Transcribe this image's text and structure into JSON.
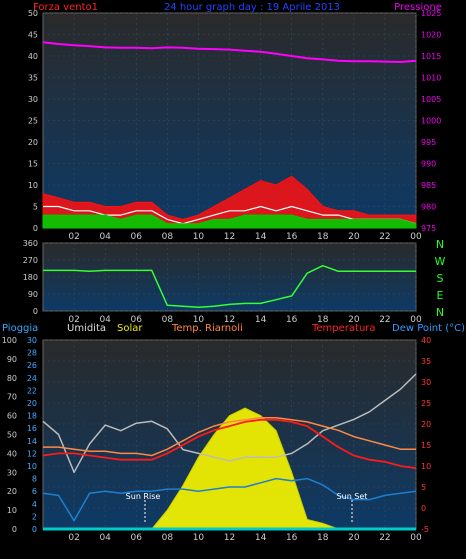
{
  "colors": {
    "background": "#000000",
    "plot_bg_top": "#2a2a2a",
    "plot_bg_bottom": "#0d3a66",
    "grid": "#3a4a5a",
    "wind_avg": "#00cc00",
    "wind_gust": "#ff1010",
    "wind_white": "#ffffff",
    "pressure": "#ff00ff",
    "direction": "#33ff33",
    "humidity": "#bbbbbb",
    "solar_fill": "#eeee00",
    "app_temp": "#ff8844",
    "temperature": "#ff1a1a",
    "dew_point": "#1e7fd0",
    "rain": "#00cccc",
    "left_axis_text": "#cccccc",
    "pressure_axis_text": "#ee00ee",
    "rain_axis_text": "#44aaff",
    "temp_axis_text": "#ff3333"
  },
  "header": {
    "left_label": "Forza vento1",
    "title": "24 hour graph day : 19 Aprile 2013",
    "right_label": "Pressione"
  },
  "direction": {
    "compass": [
      "N",
      "W",
      "S",
      "E",
      "N"
    ]
  },
  "bottom_header": {
    "rain": "Pioggia",
    "humidity": "Umidita",
    "solar": "Solar",
    "app_temp": "Temp. Riarnoli",
    "temperature": "Temperatura",
    "dew_point": "Dew Point (°C)"
  },
  "annotations": {
    "sunrise": "Sun Rise",
    "sunset": "Sun Set"
  },
  "chart_data": [
    {
      "type": "line",
      "x_ticks": [
        "02",
        "04",
        "06",
        "08",
        "10",
        "12",
        "14",
        "16",
        "18",
        "20",
        "22",
        "00"
      ],
      "left_axis": {
        "ylim": [
          0,
          50
        ],
        "ticks": [
          0,
          5,
          10,
          15,
          20,
          25,
          30,
          35,
          40,
          45,
          50
        ]
      },
      "right_axis": {
        "ylim": [
          975,
          1025
        ],
        "ticks": [
          975,
          980,
          985,
          990,
          995,
          1000,
          1005,
          1010,
          1015,
          1020,
          1025
        ]
      },
      "hours": [
        0,
        1,
        2,
        3,
        4,
        5,
        6,
        7,
        8,
        9,
        10,
        11,
        12,
        13,
        14,
        15,
        16,
        17,
        18,
        19,
        20,
        21,
        22,
        23,
        24
      ],
      "series": [
        {
          "key": "pressure",
          "axis": "right",
          "values": [
            1018.2,
            1017.8,
            1017.5,
            1017.3,
            1017.0,
            1016.9,
            1016.9,
            1016.8,
            1017.0,
            1016.9,
            1016.7,
            1016.6,
            1016.5,
            1016.2,
            1016.0,
            1015.5,
            1015.0,
            1014.5,
            1014.2,
            1013.9,
            1013.8,
            1013.8,
            1013.7,
            1013.6,
            1013.9
          ]
        },
        {
          "key": "wind_gust",
          "axis": "left",
          "values": [
            8,
            7,
            6,
            6,
            5,
            5,
            6,
            6,
            3,
            2,
            3,
            5,
            7,
            9,
            11,
            10,
            12,
            9,
            5,
            4,
            4,
            3,
            3,
            3,
            3
          ]
        },
        {
          "key": "wind_white",
          "axis": "left",
          "values": [
            5,
            5,
            4,
            4,
            3,
            3,
            4,
            4,
            2,
            1,
            2,
            3,
            4,
            4,
            5,
            4,
            5,
            4,
            3,
            3,
            2,
            2,
            2,
            2,
            1
          ]
        },
        {
          "key": "wind_avg",
          "axis": "left",
          "values": [
            3,
            3,
            3,
            3,
            3,
            2,
            3,
            3,
            1,
            1,
            1,
            2,
            2,
            3,
            3,
            3,
            3,
            2,
            2,
            2,
            2,
            2,
            2,
            2,
            1
          ]
        }
      ]
    },
    {
      "type": "line",
      "x_ticks": [
        "02",
        "04",
        "06",
        "08",
        "10",
        "12",
        "14",
        "16",
        "18",
        "20",
        "22",
        "00"
      ],
      "ylim": [
        0,
        360
      ],
      "ticks": [
        0,
        90,
        180,
        270,
        360
      ],
      "hours": [
        0,
        1,
        2,
        3,
        4,
        5,
        6,
        7,
        8,
        9,
        10,
        11,
        12,
        13,
        14,
        15,
        16,
        17,
        18,
        19,
        20,
        21,
        22,
        23,
        24
      ],
      "series": [
        {
          "key": "direction",
          "values": [
            215,
            215,
            215,
            210,
            215,
            215,
            215,
            215,
            30,
            25,
            20,
            25,
            35,
            40,
            40,
            60,
            80,
            200,
            240,
            210,
            210,
            210,
            210,
            210,
            210
          ]
        }
      ]
    },
    {
      "type": "line",
      "x_ticks": [
        "02",
        "04",
        "06",
        "08",
        "10",
        "12",
        "14",
        "16",
        "18",
        "20",
        "22",
        "00"
      ],
      "rain_axis": {
        "ylim": [
          0,
          100
        ],
        "ticks": [
          0,
          10,
          20,
          30,
          40,
          50,
          60,
          70,
          80,
          90,
          100
        ]
      },
      "secondary_axis": {
        "ylim": [
          0,
          30
        ],
        "ticks": [
          0,
          2,
          4,
          6,
          8,
          10,
          12,
          14,
          16,
          18,
          20,
          22,
          24,
          26,
          28,
          30
        ]
      },
      "temp_axis": {
        "ylim": [
          -5,
          40
        ],
        "ticks": [
          -5,
          0,
          5,
          10,
          15,
          20,
          25,
          30,
          35,
          40
        ]
      },
      "hours": [
        0,
        1,
        2,
        3,
        4,
        5,
        6,
        7,
        8,
        9,
        10,
        11,
        12,
        13,
        14,
        15,
        16,
        17,
        18,
        19,
        20,
        21,
        22,
        23,
        24
      ],
      "series": [
        {
          "key": "humidity",
          "axis": "rain",
          "values": [
            57,
            50,
            30,
            45,
            55,
            52,
            56,
            57,
            53,
            42,
            40,
            38,
            36,
            38,
            38,
            38,
            40,
            45,
            52,
            55,
            58,
            62,
            68,
            74,
            82
          ]
        },
        {
          "key": "solar",
          "axis": "rain",
          "values": [
            0,
            0,
            0,
            0,
            0,
            0,
            0,
            0,
            10,
            23,
            38,
            50,
            60,
            64,
            60,
            52,
            30,
            5,
            3,
            0,
            0,
            0,
            0,
            0,
            0
          ]
        },
        {
          "key": "app_temp",
          "axis": "temp",
          "values": [
            14.5,
            14.5,
            14.0,
            13.5,
            13.5,
            13.0,
            13.0,
            12.5,
            14.0,
            16.0,
            18.0,
            19.5,
            20.5,
            21.0,
            21.5,
            21.5,
            21.0,
            20.5,
            19.5,
            18.5,
            17.0,
            16.0,
            15.0,
            14.0,
            14.0
          ]
        },
        {
          "key": "temperature",
          "axis": "temp",
          "values": [
            12.5,
            13.0,
            13.0,
            12.5,
            12.0,
            11.5,
            11.5,
            11.5,
            13.0,
            15.0,
            17.0,
            18.5,
            19.5,
            20.5,
            21.0,
            21.0,
            20.5,
            19.5,
            17.0,
            14.5,
            12.5,
            11.5,
            11.0,
            10.0,
            9.5
          ]
        },
        {
          "key": "dew_point",
          "axis": "temp",
          "values": [
            3.5,
            3.0,
            -3.0,
            3.5,
            4.0,
            3.5,
            4.0,
            4.0,
            4.5,
            4.5,
            4.0,
            4.5,
            5.0,
            5.0,
            6.0,
            7.0,
            6.5,
            7.0,
            5.5,
            3.0,
            2.0,
            2.0,
            3.0,
            3.5,
            4.0
          ]
        },
        {
          "key": "rain",
          "axis": "rain",
          "values": [
            0,
            0,
            0,
            0,
            0,
            0,
            0,
            0,
            0,
            0,
            0,
            0,
            0,
            0,
            0,
            0,
            0,
            0,
            0,
            0,
            0,
            0,
            0,
            0,
            0
          ]
        }
      ]
    }
  ]
}
